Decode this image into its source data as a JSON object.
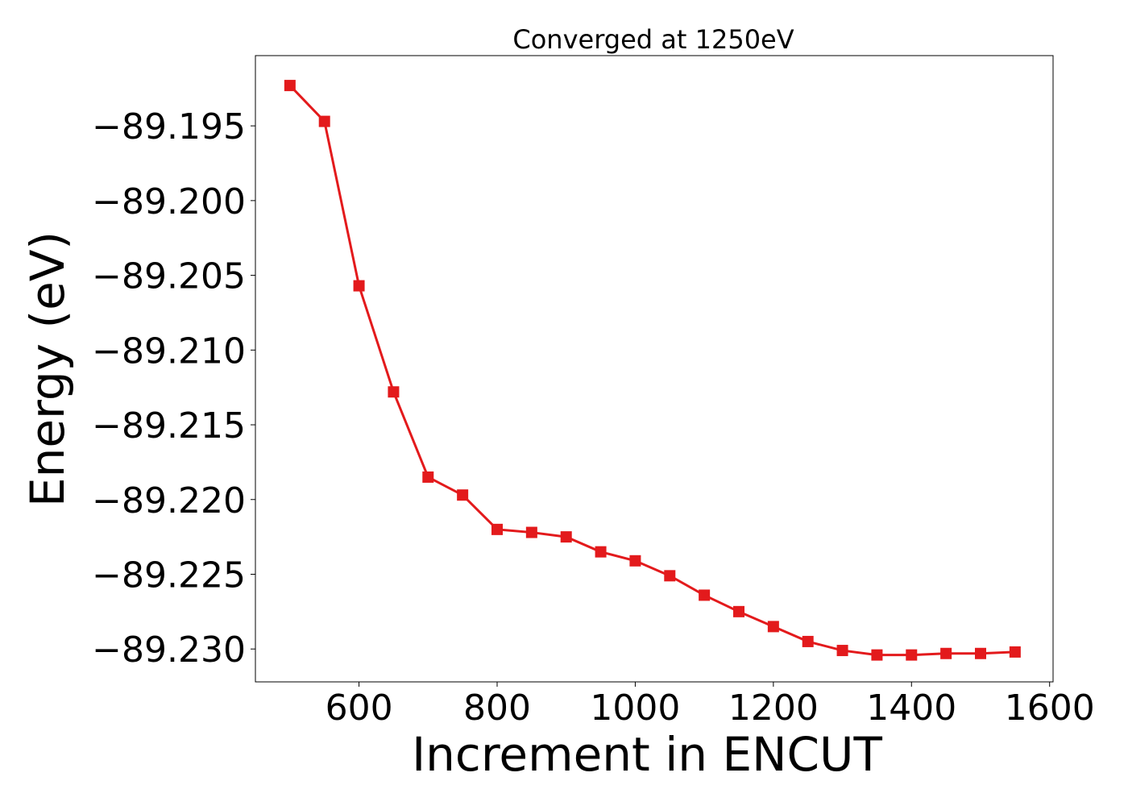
{
  "chart_data": {
    "type": "line",
    "title": "Converged at 1250eV",
    "xlabel": "Increment in ENCUT",
    "ylabel": "Energy (eV)",
    "xlim": [
      450,
      1605
    ],
    "ylim": [
      -89.2322,
      -89.1903
    ],
    "xticks": [
      600,
      800,
      1000,
      1200,
      1400,
      1600
    ],
    "yticks": [
      -89.195,
      -89.2,
      -89.205,
      -89.21,
      -89.215,
      -89.22,
      -89.225,
      -89.23
    ],
    "ytick_labels": [
      "−89.195",
      "−89.200",
      "−89.205",
      "−89.210",
      "−89.215",
      "−89.220",
      "−89.225",
      "−89.230"
    ],
    "grid": false,
    "series": [
      {
        "color": "#e31a1c",
        "marker": "square",
        "x": [
          500,
          550,
          600,
          650,
          700,
          750,
          800,
          850,
          900,
          950,
          1000,
          1050,
          1100,
          1150,
          1200,
          1250,
          1300,
          1350,
          1400,
          1450,
          1500,
          1550
        ],
        "y": [
          -89.1923,
          -89.1947,
          -89.2057,
          -89.2128,
          -89.2185,
          -89.2197,
          -89.222,
          -89.2222,
          -89.2225,
          -89.2235,
          -89.2241,
          -89.2251,
          -89.2264,
          -89.2275,
          -89.2285,
          -89.2295,
          -89.2301,
          -89.2304,
          -89.2304,
          -89.2303,
          -89.2303,
          -89.2302
        ]
      }
    ]
  }
}
